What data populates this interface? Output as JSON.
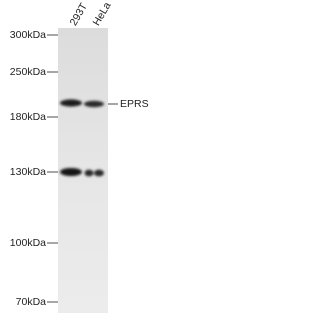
{
  "lanes": [
    "293T",
    "HeLa"
  ],
  "markers": [
    "300kDa",
    "250kDa",
    "180kDa",
    "130kDa",
    "100kDa",
    "70kDa"
  ],
  "band_label": "EPRS"
}
